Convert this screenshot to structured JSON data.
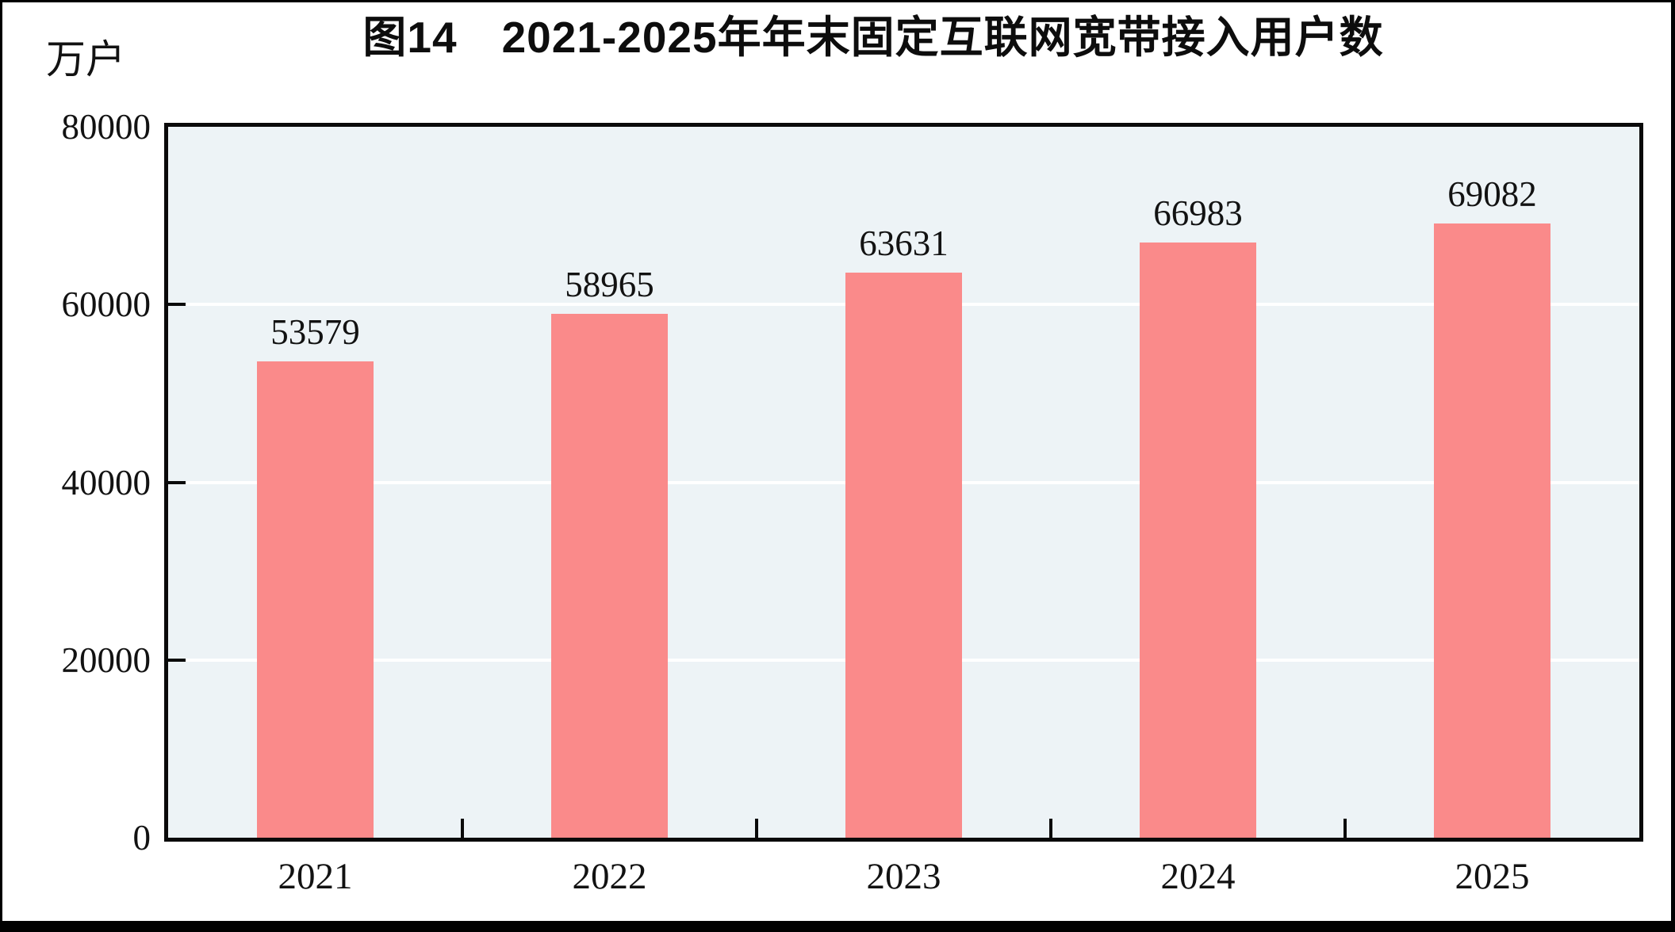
{
  "figure": {
    "title": "图14　2021-2025年年末固定互联网宽带接入用户数",
    "unit_label": "万户"
  },
  "chart_data": {
    "type": "bar",
    "title": "图14　2021-2025年年末固定互联网宽带接入用户数",
    "categories": [
      "2021",
      "2022",
      "2023",
      "2024",
      "2025"
    ],
    "values": [
      53579,
      58965,
      63631,
      66983,
      69082
    ],
    "value_labels": [
      "53579",
      "58965",
      "63631",
      "66983",
      "69082"
    ],
    "xlabel": "",
    "ylabel": "万户",
    "ylim": [
      0,
      80000
    ],
    "yticks": [
      0,
      20000,
      40000,
      60000,
      80000
    ],
    "ytick_labels": [
      "0",
      "20000",
      "40000",
      "60000",
      "80000"
    ],
    "grid": true,
    "legend_position": "none",
    "colors": {
      "bar": "#FA8A8A",
      "plot_background": "#EDF3F6",
      "gridline": "#FFFFFF",
      "axis": "#0A0A0A",
      "text": "#121212"
    }
  }
}
